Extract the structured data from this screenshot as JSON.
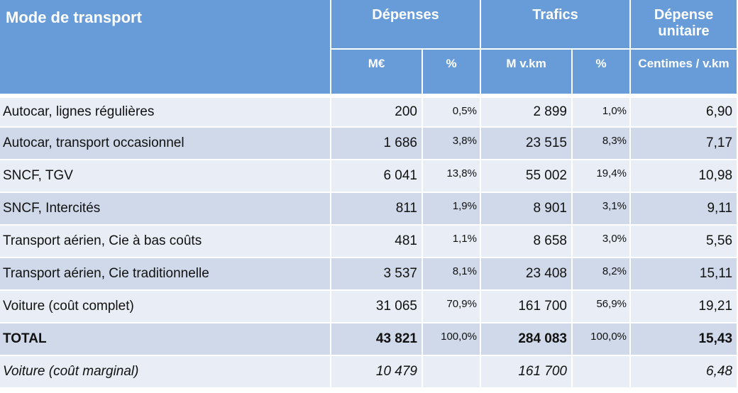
{
  "header": {
    "mode": "Mode de transport",
    "depenses": "Dépenses",
    "trafics": "Trafics",
    "depense_unitaire": "Dépense unitaire",
    "sub": {
      "meur": "M€",
      "pct1": "%",
      "mvkm": "M v.km",
      "pct2": "%",
      "centimes": "Centimes / v.km"
    }
  },
  "rows": [
    {
      "mode": "Autocar, lignes régulières",
      "meur": "200",
      "pct_dep": "0,5%",
      "mvkm": "2 899",
      "pct_traf": "1,0%",
      "unit": "6,90",
      "style": ""
    },
    {
      "mode": "Autocar, transport occasionnel",
      "meur": "1 686",
      "pct_dep": "3,8%",
      "mvkm": "23 515",
      "pct_traf": "8,3%",
      "unit": "7,17",
      "style": ""
    },
    {
      "mode": "SNCF, TGV",
      "meur": "6 041",
      "pct_dep": "13,8%",
      "mvkm": "55 002",
      "pct_traf": "19,4%",
      "unit": "10,98",
      "style": ""
    },
    {
      "mode": "SNCF, Intercités",
      "meur": "811",
      "pct_dep": "1,9%",
      "mvkm": "8 901",
      "pct_traf": "3,1%",
      "unit": "9,11",
      "style": ""
    },
    {
      "mode": "Transport aérien, Cie à bas coûts",
      "meur": "481",
      "pct_dep": "1,1%",
      "mvkm": "8 658",
      "pct_traf": "3,0%",
      "unit": "5,56",
      "style": ""
    },
    {
      "mode": "Transport aérien, Cie traditionnelle",
      "meur": "3 537",
      "pct_dep": "8,1%",
      "mvkm": "23 408",
      "pct_traf": "8,2%",
      "unit": "15,11",
      "style": ""
    },
    {
      "mode": "Voiture (coût complet)",
      "meur": "31 065",
      "pct_dep": "70,9%",
      "mvkm": "161 700",
      "pct_traf": "56,9%",
      "unit": "19,21",
      "style": ""
    },
    {
      "mode": "TOTAL",
      "meur": "43 821",
      "pct_dep": "100,0%",
      "mvkm": "284 083",
      "pct_traf": "100,0%",
      "unit": "15,43",
      "style": "total"
    },
    {
      "mode": "Voiture (coût marginal)",
      "meur": "10 479",
      "pct_dep": "",
      "mvkm": "161 700",
      "pct_traf": "",
      "unit": "6,48",
      "style": "italic"
    }
  ],
  "colors": {
    "header": "#689cd8",
    "row_light": "#e9edf5",
    "row_dark": "#d0d9e9"
  }
}
